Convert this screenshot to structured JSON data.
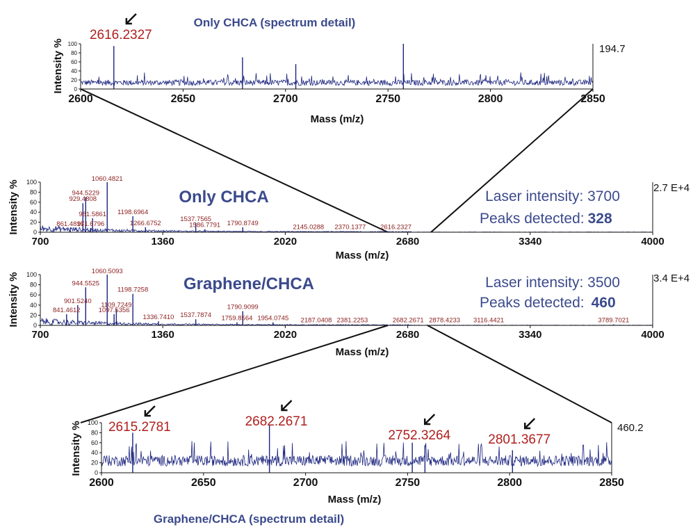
{
  "chart_data": [
    {
      "type": "line",
      "title": "Only CHCA (spectrum detail)",
      "xlabel": "Mass (m/z)",
      "ylabel": "Intensity %",
      "xlim": [
        2600,
        2850
      ],
      "ylim": [
        0,
        100
      ],
      "x_ticks": [
        "2600",
        "2650",
        "2700",
        "2750",
        "2800",
        "2850"
      ],
      "y_ticks": [
        "0",
        "20",
        "40",
        "60",
        "80",
        "100"
      ],
      "max_intensity": "194.7",
      "peak_labels": [
        {
          "x": 2616.2327,
          "label": "2616.2327",
          "arrow": true
        }
      ],
      "prominent_peaks": [
        {
          "x": 2616.2,
          "y": 95
        },
        {
          "x": 2757.5,
          "y": 100
        },
        {
          "x": 2679,
          "y": 70
        },
        {
          "x": 2705,
          "y": 55
        }
      ]
    },
    {
      "type": "line",
      "title": "Only CHCA",
      "xlabel": "Mass (m/z)",
      "ylabel": "Intensity %",
      "xlim": [
        700,
        4000
      ],
      "ylim": [
        0,
        100
      ],
      "x_ticks": [
        "700",
        "1360",
        "2020",
        "2680",
        "3340",
        "4000"
      ],
      "y_ticks": [
        "0",
        "20",
        "40",
        "60",
        "80",
        "100"
      ],
      "max_intensity": "2.7 E+4",
      "laser_intensity_label": "Laser intensity: 3700",
      "peaks_detected_label": "Peaks detected:",
      "peaks_detected_value": "328",
      "peaks": [
        {
          "x": 861.4816,
          "y": 8,
          "label": "861.4816"
        },
        {
          "x": 929.4808,
          "y": 58,
          "label": "929.4808"
        },
        {
          "x": 944.5229,
          "y": 70,
          "label": "944.5229"
        },
        {
          "x": 971.6796,
          "y": 8,
          "label": "971.6796"
        },
        {
          "x": 981.5861,
          "y": 28,
          "label": "981.5861"
        },
        {
          "x": 1060.4821,
          "y": 100,
          "label": "1060.4821"
        },
        {
          "x": 1198.6964,
          "y": 32,
          "label": "1198.6964"
        },
        {
          "x": 1266.6752,
          "y": 10,
          "label": "1266.6752"
        },
        {
          "x": 1537.7565,
          "y": 18,
          "label": "1537.7565"
        },
        {
          "x": 1586.7791,
          "y": 6,
          "label": "1586.7791"
        },
        {
          "x": 1790.8749,
          "y": 10,
          "label": "1790.8749"
        },
        {
          "x": 2145.0288,
          "y": 2,
          "label": "2145.0288"
        },
        {
          "x": 2370.1377,
          "y": 2,
          "label": "2370.1377"
        },
        {
          "x": 2616.2327,
          "y": 2,
          "label": "2616.2327"
        }
      ]
    },
    {
      "type": "line",
      "title": "Graphene/CHCA",
      "xlabel": "Mass (m/z)",
      "ylabel": "Intensity %",
      "xlim": [
        700,
        4000
      ],
      "ylim": [
        0,
        100
      ],
      "x_ticks": [
        "700",
        "1360",
        "2020",
        "2680",
        "3340",
        "4000"
      ],
      "y_ticks": [
        "0",
        "20",
        "40",
        "60",
        "80",
        "100"
      ],
      "max_intensity": "3.4 E+4",
      "laser_intensity_label": "Laser intensity: 3500",
      "peaks_detected_label": "Peaks detected:",
      "peaks_detected_value": "460",
      "peaks": [
        {
          "x": 841.4612,
          "y": 22,
          "label": "841.4612"
        },
        {
          "x": 901.524,
          "y": 40,
          "label": "901.5240"
        },
        {
          "x": 944.5525,
          "y": 75,
          "label": "944.5525"
        },
        {
          "x": 1060.5093,
          "y": 100,
          "label": "1060.5093"
        },
        {
          "x": 1097.5356,
          "y": 22,
          "label": "1097.5356"
        },
        {
          "x": 1109.7249,
          "y": 32,
          "label": "1109.7249"
        },
        {
          "x": 1198.7258,
          "y": 62,
          "label": "1198.7258"
        },
        {
          "x": 1336.741,
          "y": 8,
          "label": "1336.7410"
        },
        {
          "x": 1537.7874,
          "y": 12,
          "label": "1537.7874"
        },
        {
          "x": 1759.8564,
          "y": 6,
          "label": "1759.8564"
        },
        {
          "x": 1790.9099,
          "y": 28,
          "label": "1790.9099"
        },
        {
          "x": 1954.0745,
          "y": 6,
          "label": "1954.0745"
        },
        {
          "x": 2187.0408,
          "y": 2,
          "label": "2187.0408"
        },
        {
          "x": 2381.2253,
          "y": 2,
          "label": "2381.2253"
        },
        {
          "x": 2682.2671,
          "y": 2,
          "label": "2682.2671"
        },
        {
          "x": 2878.4233,
          "y": 2,
          "label": "2878.4233"
        },
        {
          "x": 3116.4421,
          "y": 2,
          "label": "3116.4421"
        },
        {
          "x": 3789.7021,
          "y": 2,
          "label": "3789.7021"
        }
      ]
    },
    {
      "type": "line",
      "title": "Graphene/CHCA (spectrum detail)",
      "xlabel": "Mass (m/z)",
      "ylabel": "Intensity %",
      "xlim": [
        2600,
        2850
      ],
      "ylim": [
        0,
        100
      ],
      "x_ticks": [
        "2600",
        "2650",
        "2700",
        "2750",
        "2800",
        "2850"
      ],
      "y_ticks": [
        "0",
        "20",
        "40",
        "60",
        "80",
        "100"
      ],
      "max_intensity": "460.2",
      "peak_labels": [
        {
          "x": 2615.2781,
          "label": "2615.2781",
          "arrow": true
        },
        {
          "x": 2682.2671,
          "label": "2682.2671",
          "arrow": true
        },
        {
          "x": 2752.3264,
          "label": "2752.3264",
          "arrow": true
        },
        {
          "x": 2801.3677,
          "label": "2801.3677",
          "arrow": true
        }
      ],
      "prominent_peaks": [
        {
          "x": 2615.3,
          "y": 80
        },
        {
          "x": 2682.3,
          "y": 95
        },
        {
          "x": 2752.3,
          "y": 60
        },
        {
          "x": 2758.5,
          "y": 55
        },
        {
          "x": 2801.4,
          "y": 45
        }
      ]
    }
  ],
  "colors": {
    "spectrum": "#1a237e",
    "peak_label": "#b01e1e",
    "title": "#3b4a8c"
  }
}
